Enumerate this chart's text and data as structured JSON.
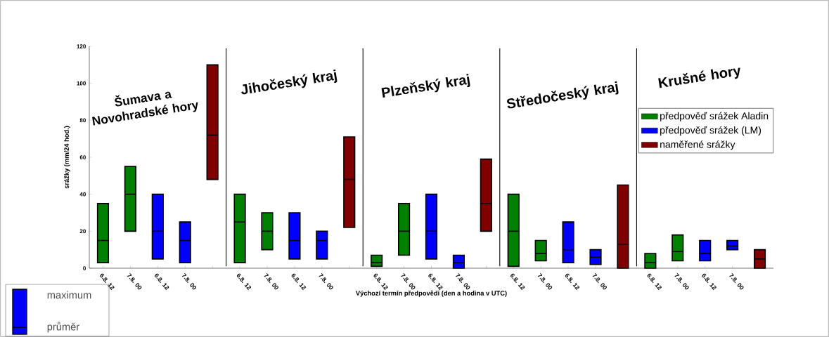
{
  "chart_data": {
    "type": "box",
    "xlabel": "Výchozí termín předpovědi (den a hodina v UTC)",
    "ylabel": "srážky (mm/24 hod.)",
    "categories": [
      "6.8. 12",
      "7.8. 00",
      "6.8. 12",
      "7.8. 00",
      null,
      "6.8. 12",
      "7.8. 00",
      "6.8. 12",
      "7.8. 00",
      null,
      "6.8. 12",
      "7.8. 00",
      "6.8. 12",
      "7.8. 00",
      null,
      "6.8. 12",
      "7.8. 00",
      "6.8. 12",
      "7.8. 00",
      null,
      "6.8. 12",
      "7.8. 00",
      "6.8. 12",
      "7.8. 00",
      null
    ],
    "ylim": [
      0,
      120
    ],
    "yticks": [
      0,
      20,
      40,
      60,
      80,
      100,
      120
    ],
    "legend": "right",
    "annotations": [
      "Šumava a Novohradské hory",
      "Jihočeský kraj",
      "Plzeňský kraj",
      "Středočeský kraj",
      "Krušné hory",
      "maximum",
      "průměr"
    ],
    "series": [
      {
        "name": "předpověď srážek Aladin",
        "color": "#008000",
        "boxes": [
          {
            "low": 3,
            "q1": 3,
            "median": 15,
            "q3": 35,
            "high": 35
          },
          {
            "low": 20,
            "q1": 20,
            "median": 40,
            "q3": 55,
            "high": 55
          },
          null,
          null,
          null,
          {
            "low": 3,
            "q1": 3,
            "median": 25,
            "q3": 40,
            "high": 40
          },
          {
            "low": 10,
            "q1": 10,
            "median": 20,
            "q3": 30,
            "high": 30
          },
          null,
          null,
          null,
          {
            "low": 1,
            "q1": 1,
            "median": 3,
            "q3": 7,
            "high": 7
          },
          {
            "low": 7,
            "q1": 7,
            "median": 20,
            "q3": 35,
            "high": 35
          },
          null,
          null,
          null,
          {
            "low": 1,
            "q1": 1,
            "median": 20,
            "q3": 40,
            "high": 40
          },
          {
            "low": 4,
            "q1": 4,
            "median": 8,
            "q3": 15,
            "high": 15
          },
          null,
          null,
          null,
          {
            "low": 0,
            "q1": 0,
            "median": 3,
            "q3": 8,
            "high": 8
          },
          {
            "low": 4,
            "q1": 4,
            "median": 9,
            "q3": 18,
            "high": 18
          },
          null,
          null,
          null
        ]
      },
      {
        "name": "předpověď srážek (LM)",
        "color": "#0000ff",
        "boxes": [
          null,
          null,
          {
            "low": 5,
            "q1": 5,
            "median": 20,
            "q3": 40,
            "high": 40
          },
          {
            "low": 3,
            "q1": 3,
            "median": 15,
            "q3": 25,
            "high": 25
          },
          null,
          null,
          null,
          {
            "low": 5,
            "q1": 5,
            "median": 15,
            "q3": 30,
            "high": 30
          },
          {
            "low": 5,
            "q1": 5,
            "median": 15,
            "q3": 20,
            "high": 20
          },
          null,
          null,
          null,
          {
            "low": 5,
            "q1": 5,
            "median": 20,
            "q3": 40,
            "high": 40
          },
          {
            "low": 0,
            "q1": 0,
            "median": 3,
            "q3": 7,
            "high": 7
          },
          null,
          null,
          null,
          {
            "low": 3,
            "q1": 3,
            "median": 10,
            "q3": 25,
            "high": 25
          },
          {
            "low": 2,
            "q1": 2,
            "median": 6,
            "q3": 10,
            "high": 10
          },
          null,
          null,
          null,
          {
            "low": 4,
            "q1": 4,
            "median": 8,
            "q3": 15,
            "high": 15
          },
          {
            "low": 10,
            "q1": 10,
            "median": 12,
            "q3": 15,
            "high": 15
          },
          null
        ]
      },
      {
        "name": "naměřené srážky",
        "color": "#800000",
        "boxes": [
          null,
          null,
          null,
          null,
          {
            "low": 48,
            "q1": 48,
            "median": 72,
            "q3": 110,
            "high": 110
          },
          null,
          null,
          null,
          null,
          {
            "low": 22,
            "q1": 22,
            "median": 48,
            "q3": 71,
            "high": 71
          },
          null,
          null,
          null,
          null,
          {
            "low": 20,
            "q1": 20,
            "median": 35,
            "q3": 59,
            "high": 59
          },
          null,
          null,
          null,
          null,
          {
            "low": 0,
            "q1": 0,
            "median": 13,
            "q3": 45,
            "high": 45
          },
          null,
          null,
          null,
          null,
          {
            "low": 0,
            "q1": 0,
            "median": 5,
            "q3": 10,
            "high": 10
          }
        ]
      }
    ]
  }
}
